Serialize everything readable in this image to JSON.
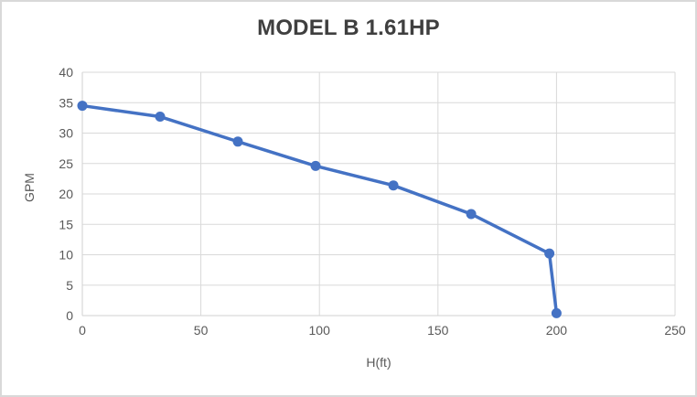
{
  "chart_data": {
    "type": "line",
    "title": "MODEL B 1.61HP",
    "xlabel": "H(ft)",
    "ylabel": "GPM",
    "series": [
      {
        "name": "MODEL B 1.61HP",
        "x": [
          0,
          32.8,
          65.6,
          98.4,
          131.2,
          164,
          197,
          200
        ],
        "y": [
          34.5,
          32.7,
          28.6,
          24.6,
          21.4,
          16.7,
          10.2,
          0.4
        ],
        "color": "#4472C4"
      }
    ],
    "xlim": [
      0,
      250
    ],
    "ylim": [
      0,
      40
    ],
    "xticks": [
      0,
      50,
      100,
      150,
      200,
      250
    ],
    "yticks": [
      0,
      5,
      10,
      15,
      20,
      25,
      30,
      35,
      40
    ],
    "grid": true,
    "legend": false,
    "marker": "circle",
    "line_style": "solid",
    "styles": {
      "series_color": "#4472C4",
      "gridline_color": "#D9D9D9",
      "axis_line_color": "#D2D2D2",
      "tick_label_color": "#595959",
      "axis_title_color": "#595959",
      "title_color": "#3F3F3F",
      "background_color": "#FFFFFF",
      "border_color": "#D9D9D9"
    }
  }
}
